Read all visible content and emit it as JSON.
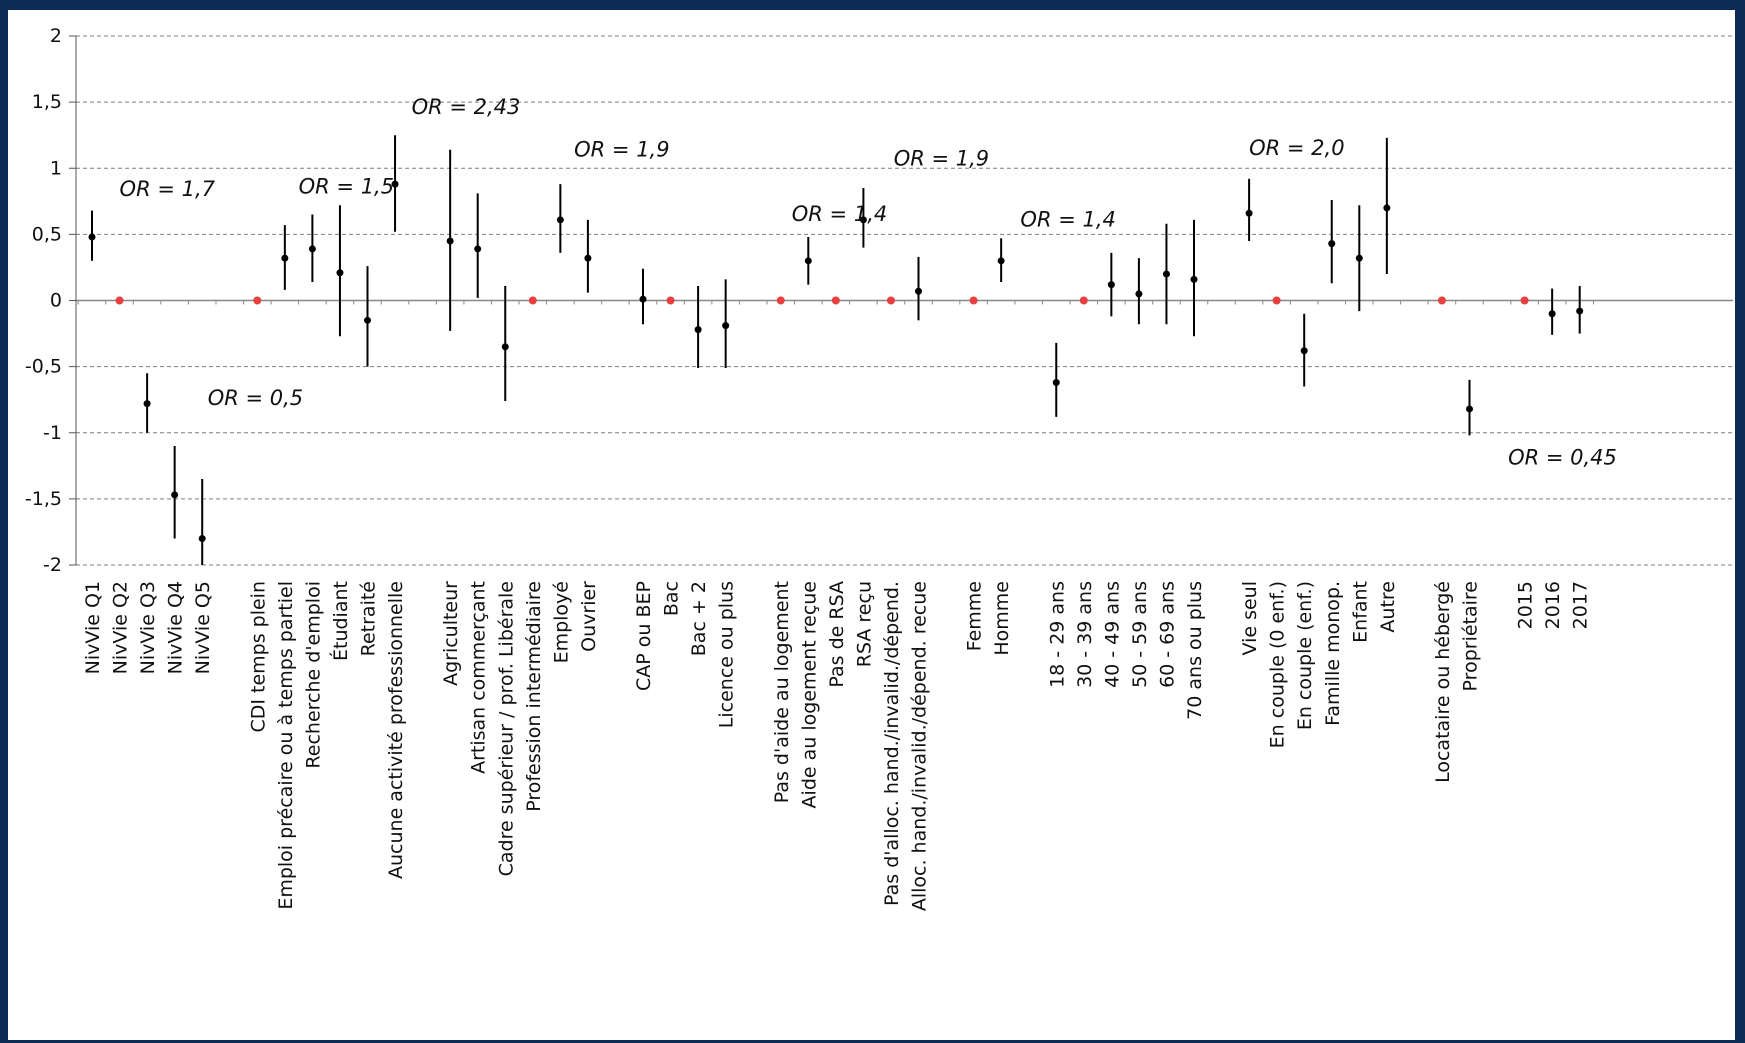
{
  "chart_data": {
    "type": "scatter",
    "ylim": [
      -2,
      2
    ],
    "yticks": [
      "2",
      "1,5",
      "1",
      "0,5",
      "0",
      "-0,5",
      "-1",
      "-1,5",
      "-2"
    ],
    "ytick_values": [
      2,
      1.5,
      1,
      0.5,
      0,
      -0.5,
      -1,
      -1.5,
      -2
    ],
    "grid": true,
    "colors": {
      "estimate": "#000000",
      "reference": "#e84040",
      "grid": "#7f7f7f"
    },
    "points": [
      {
        "label": "NivVie Q1",
        "slot": 0,
        "value": 0.48,
        "low": 0.3,
        "high": 0.68
      },
      {
        "label": "NivVie Q2",
        "slot": 1,
        "value": 0,
        "reference": true
      },
      {
        "label": "NivVie Q3",
        "slot": 2,
        "value": -0.78,
        "low": -1.0,
        "high": -0.55
      },
      {
        "label": "NivVie Q4",
        "slot": 3,
        "value": -1.47,
        "low": -1.8,
        "high": -1.1
      },
      {
        "label": "NivVie Q5",
        "slot": 4,
        "value": -1.8,
        "low": -2.0,
        "high": -1.35
      },
      {
        "label": "CDI temps plein",
        "slot": 6,
        "value": 0,
        "reference": true
      },
      {
        "label": "Emploi précaire ou à temps partiel",
        "slot": 7,
        "value": 0.32,
        "low": 0.08,
        "high": 0.57
      },
      {
        "label": "Recherche d'emploi",
        "slot": 8,
        "value": 0.39,
        "low": 0.14,
        "high": 0.65
      },
      {
        "label": "Étudiant",
        "slot": 9,
        "value": 0.21,
        "low": -0.27,
        "high": 0.72
      },
      {
        "label": "Retraité",
        "slot": 10,
        "value": -0.15,
        "low": -0.5,
        "high": 0.26
      },
      {
        "label": "Aucune activité professionnelle",
        "slot": 11,
        "value": 0.88,
        "low": 0.52,
        "high": 1.25
      },
      {
        "label": "Agriculteur",
        "slot": 13,
        "value": 0.45,
        "low": -0.23,
        "high": 1.14
      },
      {
        "label": "Artisan commerçant",
        "slot": 14,
        "value": 0.39,
        "low": 0.02,
        "high": 0.81
      },
      {
        "label": "Cadre supérieur / prof. Libérale",
        "slot": 15,
        "value": -0.35,
        "low": -0.76,
        "high": 0.11
      },
      {
        "label": "Profession intermédiaire",
        "slot": 16,
        "value": 0,
        "reference": true
      },
      {
        "label": "Employé",
        "slot": 17,
        "value": 0.61,
        "low": 0.36,
        "high": 0.88
      },
      {
        "label": "Ouvrier",
        "slot": 18,
        "value": 0.32,
        "low": 0.06,
        "high": 0.61
      },
      {
        "label": "CAP ou BEP",
        "slot": 20,
        "value": 0.01,
        "low": -0.18,
        "high": 0.24
      },
      {
        "label": "Bac",
        "slot": 21,
        "value": 0,
        "reference": true
      },
      {
        "label": "Bac + 2",
        "slot": 22,
        "value": -0.22,
        "low": -0.51,
        "high": 0.11
      },
      {
        "label": "Licence ou plus",
        "slot": 23,
        "value": -0.19,
        "low": -0.51,
        "high": 0.16
      },
      {
        "label": "Pas d'aide au logement",
        "slot": 25,
        "value": 0,
        "reference": true
      },
      {
        "label": "Aide au logement reçue",
        "slot": 26,
        "value": 0.3,
        "low": 0.12,
        "high": 0.48
      },
      {
        "label": "Pas de RSA",
        "slot": 27,
        "value": 0,
        "reference": true
      },
      {
        "label": "RSA reçu",
        "slot": 28,
        "value": 0.61,
        "low": 0.4,
        "high": 0.85
      },
      {
        "label": "Pas d'alloc. hand./invalid./dépend.",
        "slot": 29,
        "value": 0,
        "reference": true
      },
      {
        "label": "Alloc. hand./invalid./dépend. recue",
        "slot": 30,
        "value": 0.07,
        "low": -0.15,
        "high": 0.33
      },
      {
        "label": "Femme",
        "slot": 32,
        "value": 0,
        "reference": true
      },
      {
        "label": "Homme",
        "slot": 33,
        "value": 0.3,
        "low": 0.14,
        "high": 0.47
      },
      {
        "label": "18 - 29 ans",
        "slot": 35,
        "value": -0.62,
        "low": -0.88,
        "high": -0.32
      },
      {
        "label": "30 - 39 ans",
        "slot": 36,
        "value": 0,
        "reference": true
      },
      {
        "label": "40 - 49 ans",
        "slot": 37,
        "value": 0.12,
        "low": -0.12,
        "high": 0.36
      },
      {
        "label": "50 - 59 ans",
        "slot": 38,
        "value": 0.05,
        "low": -0.18,
        "high": 0.32
      },
      {
        "label": "60 - 69 ans",
        "slot": 39,
        "value": 0.2,
        "low": -0.18,
        "high": 0.58
      },
      {
        "label": "70 ans ou plus",
        "slot": 40,
        "value": 0.16,
        "low": -0.27,
        "high": 0.61
      },
      {
        "label": "Vie seul",
        "slot": 42,
        "value": 0.66,
        "low": 0.45,
        "high": 0.92
      },
      {
        "label": "En couple (0 enf.)",
        "slot": 43,
        "value": 0,
        "reference": true
      },
      {
        "label": "En couple (enf.)",
        "slot": 44,
        "value": -0.38,
        "low": -0.65,
        "high": -0.1
      },
      {
        "label": "Famille monop.",
        "slot": 45,
        "value": 0.43,
        "low": 0.13,
        "high": 0.76
      },
      {
        "label": "Enfant",
        "slot": 46,
        "value": 0.32,
        "low": -0.08,
        "high": 0.72
      },
      {
        "label": "Autre",
        "slot": 47,
        "value": 0.7,
        "low": 0.2,
        "high": 1.23
      },
      {
        "label": "Locataire ou hébergé",
        "slot": 49,
        "value": 0,
        "reference": true
      },
      {
        "label": "Propriétaire",
        "slot": 50,
        "value": -0.82,
        "low": -1.02,
        "high": -0.6
      },
      {
        "label": "2015",
        "slot": 52,
        "value": 0,
        "reference": true
      },
      {
        "label": "2016",
        "slot": 53,
        "value": -0.1,
        "low": -0.26,
        "high": 0.09
      },
      {
        "label": "2017",
        "slot": 54,
        "value": -0.08,
        "low": -0.25,
        "high": 0.11
      }
    ],
    "annotations": [
      {
        "text": "OR = 1,7",
        "slot": 1,
        "value": 0.79
      },
      {
        "text": "OR = 0,5",
        "slot": 4.2,
        "value": -0.79
      },
      {
        "text": "OR = 1,5",
        "slot": 7.5,
        "value": 0.81
      },
      {
        "text": "OR = 2,43",
        "slot": 11.6,
        "value": 1.41
      },
      {
        "text": "OR = 1,9",
        "slot": 17.5,
        "value": 1.09
      },
      {
        "text": "OR = 1,4",
        "slot": 25.4,
        "value": 0.6
      },
      {
        "text": "OR = 1,9",
        "slot": 29.1,
        "value": 1.02
      },
      {
        "text": "OR = 1,4",
        "slot": 33.7,
        "value": 0.56
      },
      {
        "text": "OR = 2,0",
        "slot": 42,
        "value": 1.1
      },
      {
        "text": "OR = 0,45",
        "slot": 51.4,
        "value": -1.24
      }
    ]
  }
}
